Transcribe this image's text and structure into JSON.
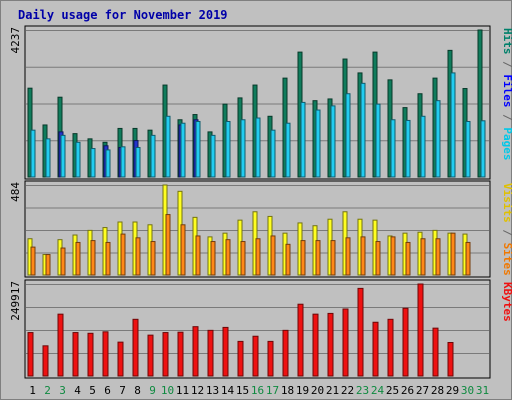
{
  "chart_data": {
    "type": "bar",
    "title": "Daily usage for November 2019",
    "categories": [
      "1",
      "2",
      "3",
      "4",
      "5",
      "6",
      "7",
      "8",
      "9",
      "10",
      "11",
      "12",
      "13",
      "14",
      "15",
      "16",
      "17",
      "18",
      "19",
      "20",
      "21",
      "22",
      "23",
      "24",
      "25",
      "26",
      "27",
      "28",
      "29",
      "30",
      "31"
    ],
    "weekend_days": [
      "2",
      "3",
      "9",
      "10",
      "16",
      "17",
      "23",
      "24",
      "30",
      "31"
    ],
    "panels": [
      {
        "id": "top",
        "max_label": "4237",
        "ylim": [
          0,
          4237
        ],
        "grid": true,
        "ylabels": [
          {
            "text": "Hits",
            "color": "#00806a"
          },
          {
            "text": " / ",
            "color": "#666666"
          },
          {
            "text": "Files",
            "color": "#0000ff"
          },
          {
            "text": " / ",
            "color": "#666666"
          },
          {
            "text": "Pages",
            "color": "#00c8e8"
          }
        ],
        "series": [
          {
            "name": "Hits",
            "color": "#0f7c5c",
            "values": [
              2560,
              1500,
              2300,
              1250,
              1100,
              1000,
              1400,
              1400,
              1350,
              2650,
              1650,
              1800,
              1300,
              2100,
              2280,
              2650,
              1750,
              2850,
              3600,
              2200,
              2250,
              3400,
              3000,
              3600,
              2800,
              2000,
              2400,
              2850,
              3650,
              2550,
              4237
            ]
          },
          {
            "name": "Files",
            "color": "#2233cc",
            "values": [
              0,
              0,
              1300,
              0,
              0,
              900,
              850,
              1050,
              0,
              0,
              1500,
              1650,
              0,
              0,
              0,
              0,
              0,
              0,
              0,
              0,
              0,
              0,
              0,
              0,
              0,
              0,
              0,
              0,
              0,
              0,
              0
            ]
          },
          {
            "name": "Pages",
            "color": "#22ccf0",
            "values": [
              1350,
              1100,
              1200,
              1000,
              820,
              780,
              870,
              850,
              1200,
              1750,
              1550,
              1600,
              1200,
              1600,
              1650,
              1700,
              1350,
              1550,
              2150,
              1930,
              2050,
              2400,
              2700,
              2100,
              1650,
              1630,
              1750,
              2200,
              3000,
              1600,
              1620
            ]
          }
        ]
      },
      {
        "id": "middle",
        "max_label": "484",
        "ylim": [
          0,
          484
        ],
        "grid": true,
        "ylabels": [
          {
            "text": "Visits",
            "color": "#e0c000"
          },
          {
            "text": " / ",
            "color": "#666666"
          },
          {
            "text": "Sites",
            "color": "#f07800"
          }
        ],
        "series": [
          {
            "name": "Visits",
            "color": "#ffff22",
            "values": [
              195,
              110,
              190,
              215,
              240,
              255,
              285,
              285,
              270,
              484,
              450,
              310,
              205,
              225,
              295,
              340,
              315,
              225,
              280,
              265,
              300,
              340,
              300,
              295,
              210,
              225,
              230,
              240,
              225,
              220,
              0
            ]
          },
          {
            "name": "Sites",
            "color": "#ff8818",
            "values": [
              150,
              110,
              145,
              175,
              185,
              175,
              220,
              200,
              180,
              325,
              270,
              210,
              180,
              190,
              180,
              195,
              210,
              165,
              185,
              185,
              185,
              200,
              205,
              180,
              205,
              175,
              195,
              195,
              225,
              175,
              0
            ]
          }
        ]
      },
      {
        "id": "bottom",
        "max_label": "249917",
        "ylim": [
          0,
          249917
        ],
        "grid": true,
        "ylabels": [
          {
            "text": "KBytes",
            "color": "#ee1111"
          }
        ],
        "series": [
          {
            "name": "KBytes",
            "color": "#ee1111",
            "values": [
              118000,
              82000,
              168000,
              118000,
              116000,
              120000,
              92000,
              154000,
              111000,
              118000,
              119000,
              134000,
              124000,
              132000,
              94000,
              108000,
              94000,
              124000,
              195000,
              168000,
              170000,
              182000,
              238000,
              146000,
              154000,
              184000,
              249917,
              130000,
              91000,
              0,
              0
            ]
          }
        ]
      }
    ]
  }
}
